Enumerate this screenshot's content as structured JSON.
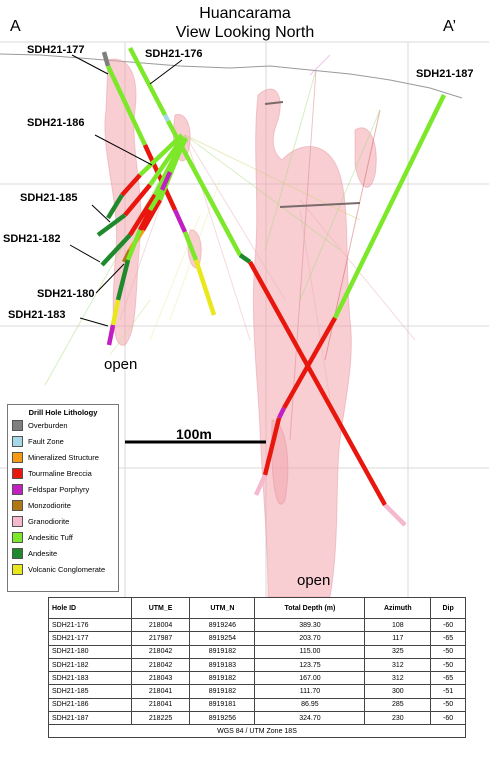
{
  "section": {
    "title_line1": "Huancarama",
    "title_line2": "View Looking North",
    "start_label": "A",
    "end_label": "A’",
    "open_label_left": "open",
    "open_label_right": "open",
    "scale_label": "100m"
  },
  "holes": [
    {
      "id": "SDH21-177",
      "label": "SDH21-177"
    },
    {
      "id": "SDH21-176",
      "label": "SDH21-176"
    },
    {
      "id": "SDH21-187",
      "label": "SDH21-187"
    },
    {
      "id": "SDH21-186",
      "label": "SDH21-186"
    },
    {
      "id": "SDH21-185",
      "label": "SDH21-185"
    },
    {
      "id": "SDH21-182",
      "label": "SDH21-182"
    },
    {
      "id": "SDH21-180",
      "label": "SDH21-180"
    },
    {
      "id": "SDH21-183",
      "label": "SDH21-183"
    }
  ],
  "legend": {
    "title": "Drill Hole Lithology",
    "items": [
      {
        "label": "Overburden",
        "color": "#7f7f7f"
      },
      {
        "label": "Fault Zone",
        "color": "#a6d9e8"
      },
      {
        "label": "Mineralized Structure",
        "color": "#f79a13"
      },
      {
        "label": "Tourmaline Breccia",
        "color": "#e8160d"
      },
      {
        "label": "Feldspar Porphyry",
        "color": "#c21fc2"
      },
      {
        "label": "Monzodiorite",
        "color": "#b07814"
      },
      {
        "label": "Granodiorite",
        "color": "#f5b8cf"
      },
      {
        "label": "Andesitic Tuff",
        "color": "#7de82a"
      },
      {
        "label": "Andesite",
        "color": "#1f8a2b"
      },
      {
        "label": "Volcanic Conglomerate",
        "color": "#e8e81d"
      }
    ]
  },
  "table": {
    "headers": [
      "Hole ID",
      "UTM_E",
      "UTM_N",
      "Total Depth (m)",
      "Azimuth",
      "Dip"
    ],
    "rows": [
      [
        "SDH21-176",
        "218004",
        "8919246",
        "389.30",
        "108",
        "-60"
      ],
      [
        "SDH21-177",
        "217987",
        "8919254",
        "203.70",
        "117",
        "-65"
      ],
      [
        "SDH21-180",
        "218042",
        "8919182",
        "115.00",
        "325",
        "-50"
      ],
      [
        "SDH21-182",
        "218042",
        "8919183",
        "123.75",
        "312",
        "-50"
      ],
      [
        "SDH21-183",
        "218043",
        "8919182",
        "167.00",
        "312",
        "-65"
      ],
      [
        "SDH21-185",
        "218041",
        "8919182",
        "111.70",
        "300",
        "-51"
      ],
      [
        "SDH21-186",
        "218041",
        "8919181",
        "86.95",
        "285",
        "-50"
      ],
      [
        "SDH21-187",
        "218225",
        "8919256",
        "324.70",
        "230",
        "-60"
      ]
    ],
    "footer": "WGS 84 / UTM Zone 18S"
  }
}
